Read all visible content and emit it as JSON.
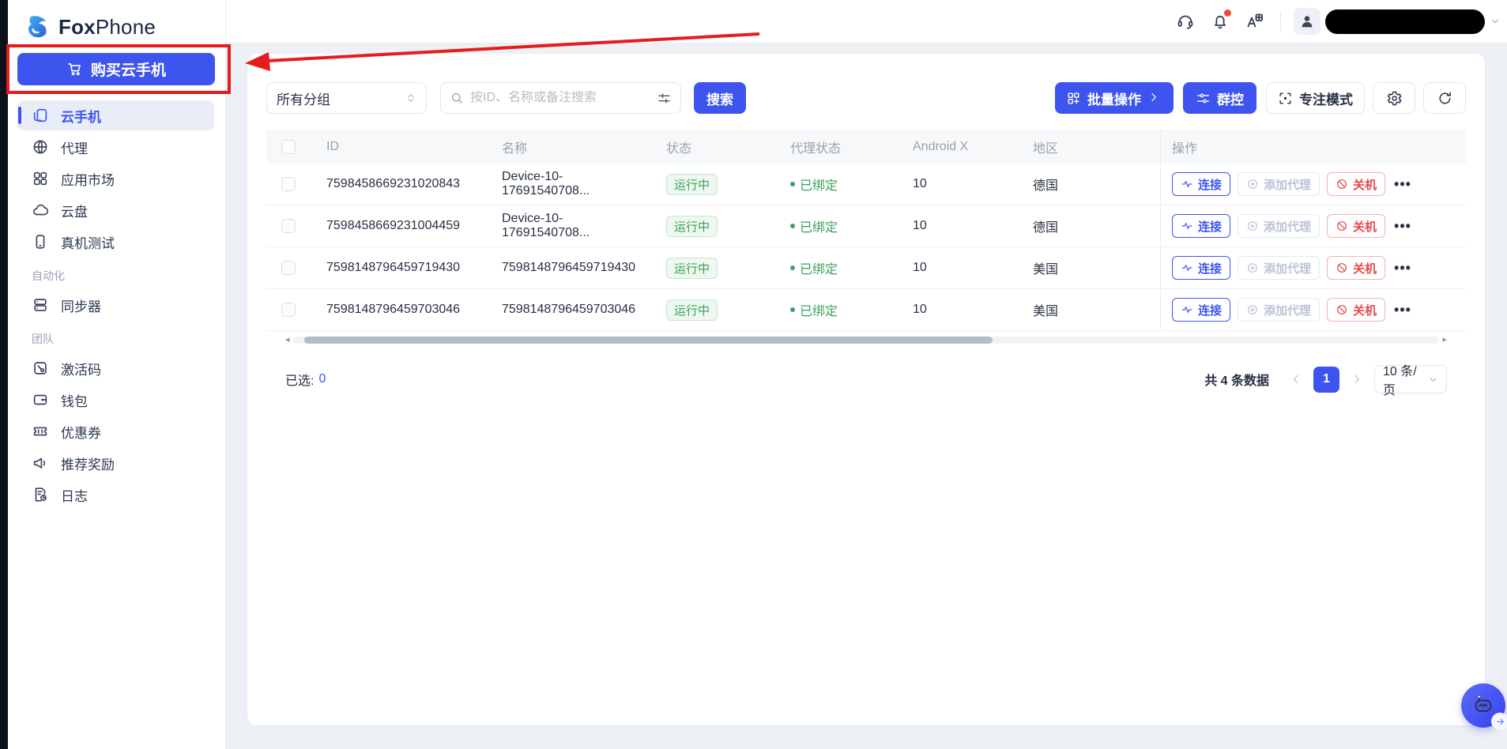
{
  "brand": {
    "name_bold": "Fox",
    "name_light": "Phone"
  },
  "colors": {
    "primary": "#3d55ee",
    "success": "#3ba15b",
    "danger": "#e5484d",
    "annotation": "#e51c1c"
  },
  "sidebar": {
    "buy_button": {
      "label": "购买云手机"
    },
    "groups": [
      {
        "label": "",
        "items": [
          {
            "key": "cloud-phone",
            "label": "云手机",
            "icon": "cloud-phone-icon",
            "active": true
          },
          {
            "key": "proxy",
            "label": "代理",
            "icon": "globe-icon",
            "active": false
          },
          {
            "key": "app-market",
            "label": "应用市场",
            "icon": "app-grid-icon",
            "active": false
          },
          {
            "key": "cloud-disk",
            "label": "云盘",
            "icon": "cloud-icon",
            "active": false
          },
          {
            "key": "real-device-test",
            "label": "真机测试",
            "icon": "device-icon",
            "active": false
          }
        ]
      },
      {
        "label": "自动化",
        "items": [
          {
            "key": "synchronizer",
            "label": "同步器",
            "icon": "sync-cards-icon",
            "active": false
          }
        ]
      },
      {
        "label": "团队",
        "items": [
          {
            "key": "activation-code",
            "label": "激活码",
            "icon": "activation-key-icon",
            "active": false
          },
          {
            "key": "wallet",
            "label": "钱包",
            "icon": "wallet-icon",
            "active": false
          },
          {
            "key": "coupon",
            "label": "优惠券",
            "icon": "coupon-icon",
            "active": false
          },
          {
            "key": "referral-reward",
            "label": "推荐奖励",
            "icon": "megaphone-icon",
            "active": false
          },
          {
            "key": "logs",
            "label": "日志",
            "icon": "log-clock-icon",
            "active": false
          }
        ]
      }
    ]
  },
  "topbar": {
    "icons": [
      "support-headset",
      "notification-bell",
      "language-translate",
      "user-avatar"
    ],
    "has_notification_dot": true
  },
  "toolbar": {
    "group_filter": {
      "value": "所有分组"
    },
    "search": {
      "placeholder": "按ID、名称或备注搜索"
    },
    "search_button": "搜索",
    "batch_button": "批量操作",
    "group_control_button": "群控",
    "focus_mode_button": "专注模式"
  },
  "table": {
    "columns": [
      "ID",
      "名称",
      "状态",
      "代理状态",
      "Android X",
      "地区",
      "操作"
    ],
    "row_actions": {
      "connect": "连接",
      "add_proxy": "添加代理",
      "shutdown": "关机"
    },
    "rows": [
      {
        "id": "7598458669231020843",
        "name": "Device-10-17691540708...",
        "status": "运行中",
        "proxy_status": "已绑定",
        "android": "10",
        "region": "德国"
      },
      {
        "id": "7598458669231004459",
        "name": "Device-10-17691540708...",
        "status": "运行中",
        "proxy_status": "已绑定",
        "android": "10",
        "region": "德国"
      },
      {
        "id": "7598148796459719430",
        "name": "7598148796459719430",
        "status": "运行中",
        "proxy_status": "已绑定",
        "android": "10",
        "region": "美国"
      },
      {
        "id": "7598148796459703046",
        "name": "7598148796459703046",
        "status": "运行中",
        "proxy_status": "已绑定",
        "android": "10",
        "region": "美国"
      }
    ]
  },
  "footer": {
    "selected_label": "已选:",
    "selected_count": "0",
    "total_label": "共 4 条数据",
    "current_page": "1",
    "page_size": "10 条/页"
  }
}
